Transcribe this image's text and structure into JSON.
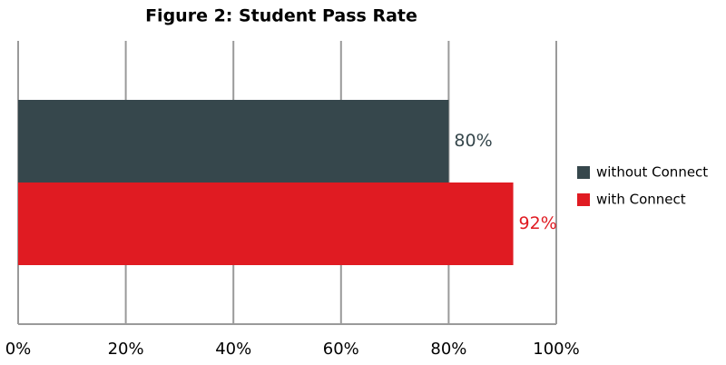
{
  "chart_data": {
    "type": "bar",
    "orientation": "horizontal",
    "title": "Figure 2: Student Pass Rate",
    "categories": [
      null
    ],
    "series": [
      {
        "name": "without Connect",
        "color": "#36474c",
        "values": [
          80
        ],
        "value_labels": [
          "80%"
        ]
      },
      {
        "name": "with Connect",
        "color": "#e01b22",
        "values": [
          92
        ],
        "value_labels": [
          "92%"
        ]
      }
    ],
    "xlim": [
      0,
      100
    ],
    "xticks": [
      {
        "value": 0,
        "label": "0%"
      },
      {
        "value": 20,
        "label": "20%"
      },
      {
        "value": 40,
        "label": "40%"
      },
      {
        "value": 60,
        "label": "60%"
      },
      {
        "value": 80,
        "label": "80%"
      },
      {
        "value": 100,
        "label": "100%"
      }
    ],
    "grid": true,
    "legend": "right"
  }
}
